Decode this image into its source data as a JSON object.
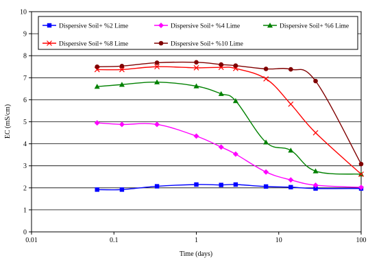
{
  "chart_data": {
    "type": "line",
    "xlabel": "Time (days)",
    "ylabel": "EC (mS/cm)",
    "x_scale": "log",
    "xlim": [
      0.01,
      100
    ],
    "ylim": [
      0,
      10
    ],
    "x_ticks": [
      "0.01",
      "0.1",
      "1",
      "10",
      "100"
    ],
    "y_ticks": [
      "0",
      "1",
      "2",
      "3",
      "4",
      "5",
      "6",
      "7",
      "8",
      "9",
      "10"
    ],
    "grid": "horizontal",
    "legend_placement": "top-inside",
    "x": [
      0.0625,
      0.125,
      0.333,
      1,
      2,
      3,
      7,
      14,
      28,
      100
    ],
    "series": [
      {
        "name": "Dispersive Soil+ %2 Lime",
        "color": "#0000ff",
        "marker": "square",
        "values": [
          1.92,
          1.92,
          2.07,
          2.15,
          2.13,
          2.15,
          2.06,
          2.03,
          1.97,
          1.97
        ]
      },
      {
        "name": "Dispersive Soil+ %4 Lime",
        "color": "#ff00ff",
        "marker": "diamond",
        "values": [
          4.95,
          4.88,
          4.88,
          4.35,
          3.85,
          3.53,
          2.72,
          2.36,
          2.12,
          2.02
        ]
      },
      {
        "name": "Dispersive Soil+ %6 Lime",
        "color": "#008000",
        "marker": "triangle",
        "values": [
          6.6,
          6.69,
          6.8,
          6.62,
          6.27,
          5.95,
          4.07,
          3.7,
          2.76,
          2.62
        ]
      },
      {
        "name": "Dispersive Soil+ %8 Lime",
        "color": "#ff0000",
        "marker": "x",
        "values": [
          7.37,
          7.37,
          7.5,
          7.45,
          7.47,
          7.42,
          6.95,
          5.8,
          4.5,
          2.62
        ]
      },
      {
        "name": "Dispersive Soil+ %10 Lime",
        "color": "#800000",
        "marker": "circle",
        "values": [
          7.5,
          7.53,
          7.68,
          7.7,
          7.6,
          7.55,
          7.4,
          7.38,
          6.85,
          3.08
        ]
      }
    ]
  }
}
